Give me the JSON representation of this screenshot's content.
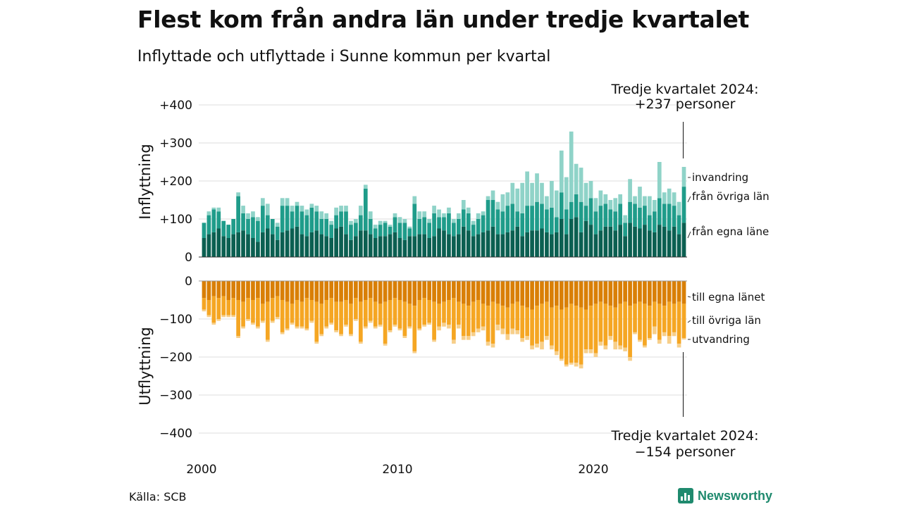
{
  "header": {
    "title": "Flest kom från andra län under tredje kvartalet",
    "subtitle": "Inflyttade och utflyttade i Sunne kommun per kvartal"
  },
  "source": "Källa: SCB",
  "logo": {
    "name": "Newsworthy",
    "icon": "newsworthy-bar-icon"
  },
  "colors": {
    "in_egna": "#0b5f51",
    "in_ovriga": "#1f9c8a",
    "in_invandring": "#8fd3c8",
    "ut_egna": "#d97f06",
    "ut_ovriga": "#f5a623",
    "ut_utvandring": "#f7cf8a",
    "grid": "#dddddd"
  },
  "chart_data": {
    "type": "bar",
    "stacked": true,
    "x_axis": {
      "range": [
        "2000Q1",
        "2024Q3"
      ],
      "tick_labels": [
        "2000",
        "2010",
        "2020"
      ]
    },
    "panels": [
      {
        "name": "inflyttning",
        "ylabel": "Inflyttning",
        "ylim": [
          0,
          400
        ],
        "ticks": [
          "0",
          "+100",
          "+200",
          "+300",
          "+400"
        ],
        "annotation": {
          "line1": "Tredje kvartalet 2024:",
          "line2": "+237 personer"
        },
        "series_labels": [
          "invandring",
          "från övriga län",
          "från egna läne"
        ]
      },
      {
        "name": "utflyttning",
        "ylabel": "Utflyttning",
        "ylim": [
          -400,
          0
        ],
        "ticks": [
          "0",
          "−100",
          "−200",
          "−300",
          "−400"
        ],
        "annotation": {
          "line1": "Tredje kvartalet 2024:",
          "line2": "−154 personer"
        },
        "series_labels": [
          "till egna länet",
          "till övriga län",
          "utvandring"
        ]
      }
    ],
    "quarters": 99,
    "inflyttning": {
      "fran_egna_lanet": [
        50,
        60,
        65,
        75,
        55,
        50,
        60,
        65,
        70,
        60,
        50,
        40,
        65,
        75,
        60,
        45,
        65,
        70,
        75,
        80,
        60,
        55,
        65,
        70,
        60,
        55,
        50,
        75,
        80,
        60,
        45,
        55,
        70,
        70,
        60,
        50,
        55,
        55,
        60,
        65,
        50,
        45,
        55,
        55,
        60,
        60,
        50,
        55,
        75,
        70,
        60,
        55,
        60,
        80,
        70,
        55,
        60,
        65,
        70,
        80,
        60,
        60,
        65,
        70,
        80,
        55,
        65,
        70,
        70,
        75,
        65,
        60,
        65,
        100,
        60,
        100,
        105,
        65,
        95,
        85,
        60,
        70,
        80,
        80,
        70,
        85,
        55,
        90,
        80,
        75,
        85,
        70,
        65,
        85,
        80,
        70,
        80,
        60,
        90
      ],
      "fran_ovriga_lan": [
        40,
        50,
        60,
        45,
        40,
        35,
        40,
        95,
        45,
        40,
        55,
        55,
        70,
        35,
        40,
        35,
        70,
        65,
        45,
        55,
        60,
        55,
        65,
        50,
        40,
        45,
        35,
        35,
        40,
        60,
        40,
        35,
        40,
        110,
        40,
        25,
        30,
        35,
        20,
        40,
        40,
        45,
        20,
        85,
        40,
        45,
        40,
        60,
        30,
        35,
        55,
        35,
        40,
        45,
        45,
        30,
        40,
        45,
        80,
        70,
        65,
        60,
        70,
        70,
        40,
        60,
        70,
        65,
        75,
        65,
        60,
        70,
        40,
        70,
        65,
        45,
        60,
        80,
        40,
        70,
        60,
        65,
        60,
        45,
        50,
        55,
        35,
        55,
        60,
        55,
        50,
        40,
        55,
        70,
        60,
        70,
        55,
        50,
        95
      ],
      "invandring": [
        0,
        10,
        5,
        10,
        0,
        0,
        0,
        10,
        20,
        15,
        15,
        10,
        20,
        30,
        0,
        10,
        20,
        20,
        15,
        10,
        15,
        15,
        10,
        15,
        20,
        15,
        10,
        20,
        15,
        15,
        10,
        10,
        25,
        10,
        20,
        10,
        10,
        5,
        5,
        10,
        15,
        10,
        5,
        20,
        20,
        15,
        10,
        20,
        20,
        10,
        15,
        10,
        15,
        25,
        15,
        10,
        15,
        10,
        10,
        25,
        20,
        45,
        35,
        55,
        60,
        80,
        90,
        60,
        75,
        55,
        35,
        70,
        70,
        110,
        85,
        185,
        80,
        90,
        60,
        45,
        35,
        40,
        25,
        25,
        35,
        25,
        20,
        60,
        20,
        55,
        25,
        50,
        30,
        95,
        30,
        40,
        35,
        35,
        52
      ]
    },
    "utflyttning": {
      "till_egna_lanet": [
        -45,
        -50,
        -40,
        -45,
        -40,
        -50,
        -45,
        -50,
        -55,
        -45,
        -50,
        -45,
        -60,
        -55,
        -45,
        -40,
        -50,
        -55,
        -60,
        -50,
        -55,
        -45,
        -50,
        -55,
        -60,
        -50,
        -45,
        -55,
        -55,
        -50,
        -60,
        -45,
        -55,
        -50,
        -45,
        -55,
        -60,
        -55,
        -50,
        -45,
        -50,
        -55,
        -60,
        -65,
        -50,
        -45,
        -50,
        -55,
        -60,
        -55,
        -50,
        -45,
        -55,
        -60,
        -65,
        -55,
        -50,
        -60,
        -65,
        -55,
        -60,
        -65,
        -70,
        -60,
        -55,
        -65,
        -70,
        -75,
        -65,
        -60,
        -55,
        -70,
        -65,
        -75,
        -70,
        -60,
        -65,
        -70,
        -75,
        -65,
        -60,
        -55,
        -60,
        -65,
        -70,
        -60,
        -55,
        -65,
        -60,
        -55,
        -60,
        -65,
        -55,
        -60,
        -65,
        -55,
        -60,
        -55,
        -60
      ],
      "till_ovriga_lan": [
        -30,
        -40,
        -70,
        -55,
        -50,
        -40,
        -45,
        -95,
        -65,
        -55,
        -60,
        -75,
        -45,
        -100,
        -60,
        -55,
        -85,
        -70,
        -50,
        -70,
        -65,
        -80,
        -55,
        -105,
        -80,
        -70,
        -65,
        -75,
        -85,
        -65,
        -80,
        -55,
        -105,
        -70,
        -60,
        -65,
        -55,
        -110,
        -80,
        -70,
        -75,
        -90,
        -60,
        -120,
        -75,
        -70,
        -60,
        -100,
        -60,
        -55,
        -65,
        -110,
        -60,
        -85,
        -80,
        -80,
        -75,
        -60,
        -95,
        -110,
        -55,
        -60,
        -70,
        -65,
        -75,
        -85,
        -75,
        -95,
        -100,
        -100,
        -90,
        -100,
        -120,
        -130,
        -150,
        -155,
        -150,
        -150,
        -105,
        -115,
        -130,
        -105,
        -110,
        -80,
        -90,
        -110,
        -120,
        -135,
        -75,
        -100,
        -110,
        -85,
        -65,
        -95,
        -70,
        -90,
        -75,
        -110,
        -90
      ],
      "utvandring": [
        -5,
        -5,
        -5,
        -5,
        -5,
        -5,
        -5,
        -5,
        -5,
        -5,
        -5,
        -5,
        -5,
        -5,
        -5,
        -5,
        -5,
        -5,
        -5,
        -5,
        -5,
        -5,
        -5,
        -5,
        -5,
        -5,
        -5,
        -5,
        -5,
        -5,
        -5,
        -5,
        -5,
        -5,
        -5,
        -5,
        -5,
        -5,
        -5,
        -5,
        -5,
        -5,
        -5,
        -5,
        -5,
        -5,
        -5,
        -5,
        -10,
        -10,
        -10,
        -10,
        -10,
        -10,
        -10,
        -10,
        -10,
        -10,
        -10,
        -10,
        -15,
        -15,
        -15,
        -15,
        -10,
        -10,
        -10,
        -10,
        -10,
        -20,
        -10,
        -10,
        -10,
        -5,
        -5,
        -5,
        -10,
        -10,
        -10,
        -10,
        -10,
        -10,
        -10,
        -10,
        -20,
        -10,
        -10,
        -10,
        -5,
        -5,
        -5,
        -5,
        -20,
        -10,
        -10,
        -20,
        -10,
        -10,
        -4
      ]
    }
  }
}
